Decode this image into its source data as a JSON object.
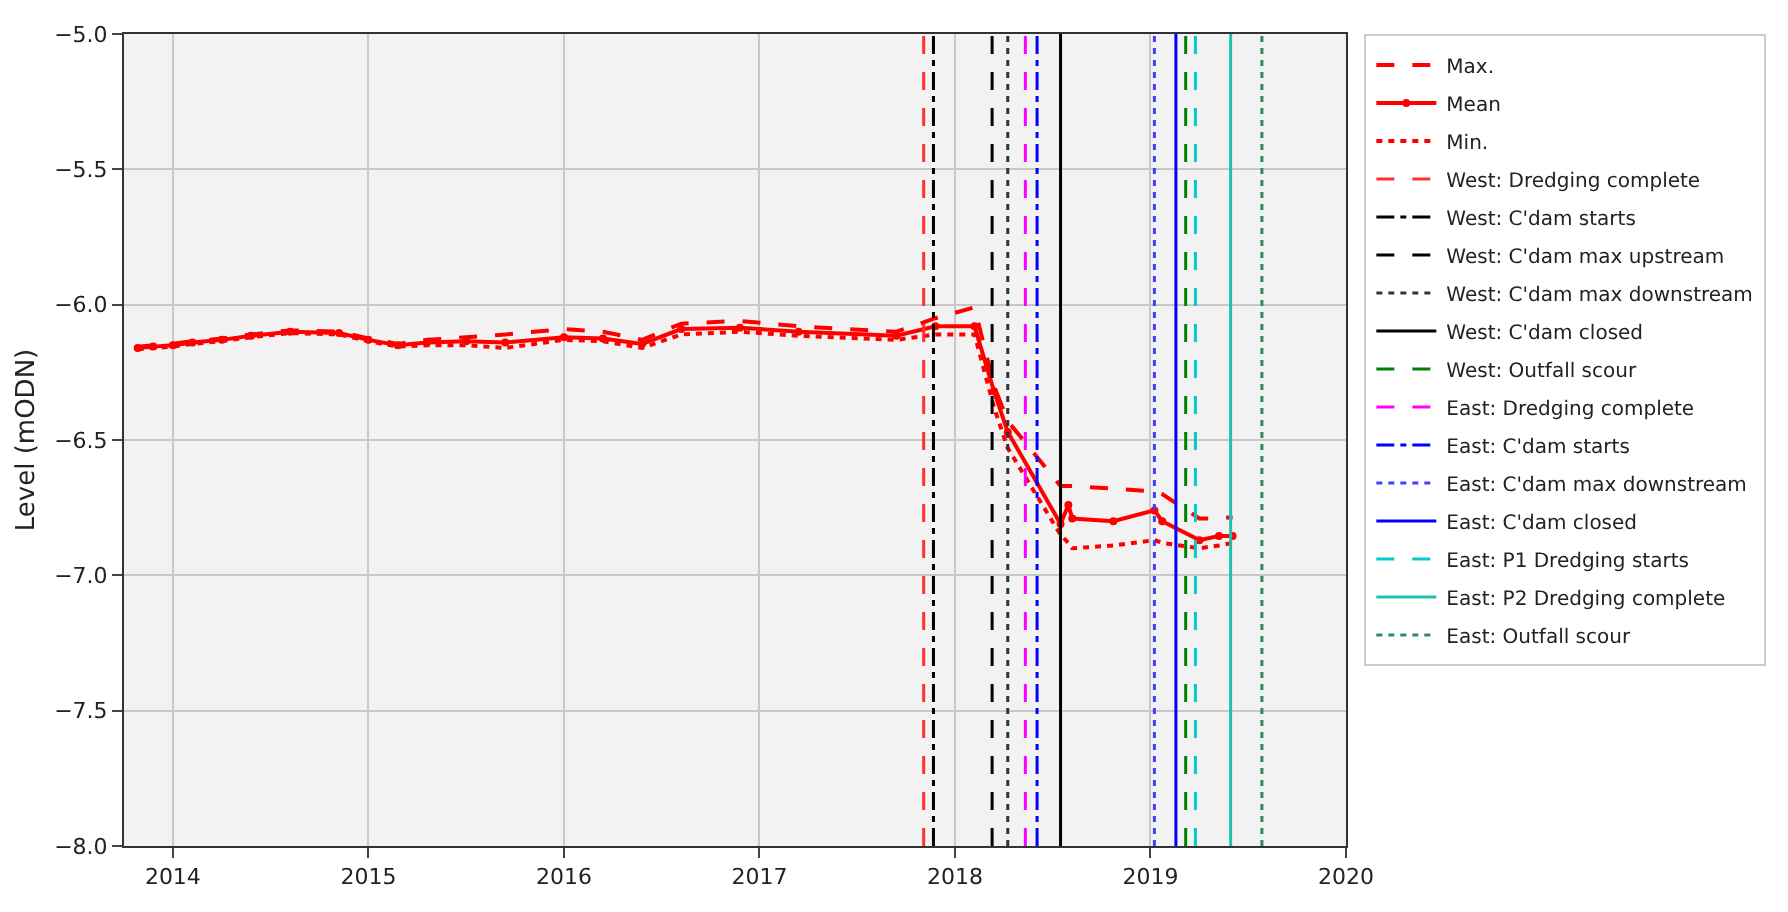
{
  "chart_data": {
    "type": "line",
    "ylabel": "Level (mODN)",
    "x": [
      2013.82,
      2013.9,
      2014.0,
      2014.1,
      2014.25,
      2014.4,
      2014.6,
      2014.85,
      2015.0,
      2015.15,
      2015.3,
      2015.5,
      2015.7,
      2016.0,
      2016.2,
      2016.4,
      2016.6,
      2016.9,
      2017.2,
      2017.7,
      2017.9,
      2018.1,
      2018.2,
      2018.27,
      2018.54,
      2018.58,
      2018.6,
      2018.81,
      2019.02,
      2019.06,
      2019.25,
      2019.35,
      2019.42
    ],
    "series": [
      {
        "name": "Max.",
        "color": "#ff0000",
        "line_style": "dashed",
        "marker": "none",
        "values": [
          -6.155,
          -6.15,
          -6.145,
          -6.135,
          -6.125,
          -6.11,
          -6.095,
          -6.1,
          -6.125,
          -6.145,
          -6.13,
          -6.12,
          -6.11,
          -6.09,
          -6.1,
          -6.13,
          -6.07,
          -6.06,
          -6.08,
          -6.1,
          -6.05,
          -6.01,
          -6.3,
          -6.43,
          -6.67,
          -6.67,
          -6.67,
          -6.68,
          -6.69,
          -6.7,
          -6.79,
          -6.79,
          -6.785
        ]
      },
      {
        "name": "Mean",
        "color": "#ff0000",
        "line_style": "solid",
        "marker": "circle",
        "values": [
          -6.16,
          -6.155,
          -6.15,
          -6.14,
          -6.13,
          -6.115,
          -6.1,
          -6.105,
          -6.13,
          -6.15,
          -6.14,
          -6.135,
          -6.14,
          -6.12,
          -6.125,
          -6.145,
          -6.09,
          -6.085,
          -6.1,
          -6.115,
          -6.08,
          -6.08,
          -6.32,
          -6.47,
          -6.81,
          -6.74,
          -6.79,
          -6.8,
          -6.76,
          -6.8,
          -6.87,
          -6.855,
          -6.855
        ]
      },
      {
        "name": "Min.",
        "color": "#ff0000",
        "line_style": "dotted",
        "marker": "none",
        "values": [
          -6.165,
          -6.16,
          -6.155,
          -6.145,
          -6.135,
          -6.12,
          -6.105,
          -6.11,
          -6.135,
          -6.155,
          -6.15,
          -6.15,
          -6.16,
          -6.13,
          -6.135,
          -6.16,
          -6.11,
          -6.1,
          -6.115,
          -6.13,
          -6.11,
          -6.11,
          -6.38,
          -6.53,
          -6.85,
          -6.88,
          -6.9,
          -6.89,
          -6.87,
          -6.88,
          -6.9,
          -6.89,
          -6.88
        ]
      },
      {
        "name": "West: Dredging complete",
        "color": "#ff3030",
        "line_style": "dashed",
        "marker": "none",
        "x": [
          2017.84,
          2017.84
        ],
        "values": [
          -8.0,
          -5.0
        ]
      },
      {
        "name": "West: C'dam starts",
        "color": "#000000",
        "line_style": "dashdot",
        "marker": "none",
        "x": [
          2017.89,
          2017.89
        ],
        "values": [
          -8.0,
          -5.0
        ]
      },
      {
        "name": "West: C'dam max upstream",
        "color": "#000000",
        "line_style": "dashed",
        "marker": "none",
        "x": [
          2018.19,
          2018.19
        ],
        "values": [
          -8.0,
          -5.0
        ]
      },
      {
        "name": "West: C'dam max downstream",
        "color": "#333333",
        "line_style": "dotted",
        "marker": "none",
        "x": [
          2018.27,
          2018.27
        ],
        "values": [
          -8.0,
          -5.0
        ]
      },
      {
        "name": "West: C'dam closed",
        "color": "#000000",
        "line_style": "solid",
        "marker": "none",
        "x": [
          2018.54,
          2018.54
        ],
        "values": [
          -8.0,
          -5.0
        ]
      },
      {
        "name": "West: Outfall scour",
        "color": "#008000",
        "line_style": "dashed",
        "marker": "none",
        "x": [
          2019.18,
          2019.18
        ],
        "values": [
          -8.0,
          -5.0
        ]
      },
      {
        "name": "East: Dredging complete",
        "color": "#ff00ff",
        "line_style": "dashed",
        "marker": "none",
        "x": [
          2018.36,
          2018.36
        ],
        "values": [
          -8.0,
          -5.0
        ]
      },
      {
        "name": "East: C'dam starts",
        "color": "#0000ff",
        "line_style": "dashdot",
        "marker": "none",
        "x": [
          2018.42,
          2018.42
        ],
        "values": [
          -8.0,
          -5.0
        ]
      },
      {
        "name": "East: C'dam max downstream",
        "color": "#4040ff",
        "line_style": "dotted",
        "marker": "none",
        "x": [
          2019.02,
          2019.02
        ],
        "values": [
          -8.0,
          -5.0
        ]
      },
      {
        "name": "East: C'dam closed",
        "color": "#0000ff",
        "line_style": "solid",
        "marker": "none",
        "x": [
          2019.13,
          2019.13
        ],
        "values": [
          -8.0,
          -5.0
        ]
      },
      {
        "name": "East: P1 Dredging starts",
        "color": "#00cccc",
        "line_style": "dashed",
        "marker": "none",
        "x": [
          2019.23,
          2019.23
        ],
        "values": [
          -8.0,
          -5.0
        ]
      },
      {
        "name": "East: P2 Dredging complete",
        "color": "#20c0b0",
        "line_style": "solid",
        "marker": "none",
        "x": [
          2019.41,
          2019.41
        ],
        "values": [
          -8.0,
          -5.0
        ]
      },
      {
        "name": "East: Outfall scour",
        "color": "#2e8b57",
        "line_style": "dotted",
        "marker": "none",
        "x": [
          2019.57,
          2019.57
        ],
        "values": [
          -8.0,
          -5.0
        ]
      }
    ],
    "xlim": [
      2013.75,
      2020
    ],
    "xticks": [
      2014,
      2015,
      2016,
      2017,
      2018,
      2019,
      2020
    ],
    "ylim": [
      -8.0,
      -5.0
    ],
    "yticks": [
      {
        "value": -8.0,
        "label": "−8.0"
      },
      {
        "value": -7.5,
        "label": "−7.5"
      },
      {
        "value": -7.0,
        "label": "−7.0"
      },
      {
        "value": -6.5,
        "label": "−6.5"
      },
      {
        "value": -6.0,
        "label": "−6.0"
      },
      {
        "value": -5.5,
        "label": "−5.5"
      },
      {
        "value": -5.0,
        "label": "−5.0"
      }
    ],
    "grid": true,
    "legend": "right"
  }
}
